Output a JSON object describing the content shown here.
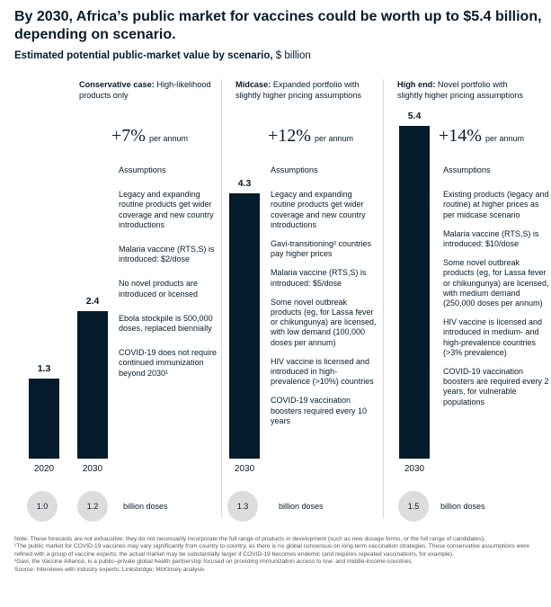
{
  "title": "By 2030, Africa’s public market for vaccines could be worth up to $5.4 billion, depending on scenario.",
  "subtitle": {
    "bold": "Estimated potential public-market value by scenario,",
    "unit": " $ billion"
  },
  "chart_data": {
    "type": "bar",
    "ylim": [
      0,
      5.4
    ],
    "bars": [
      {
        "year": "2020",
        "value": 1.3,
        "label": "1.3",
        "doses": "1.0"
      },
      {
        "year": "2030",
        "value": 2.4,
        "label": "2.4",
        "doses": "1.2"
      },
      {
        "year": "2030",
        "value": 4.3,
        "label": "4.3",
        "doses": "1.3"
      },
      {
        "year": "2030",
        "value": 5.4,
        "label": "5.4",
        "doses": "1.5"
      }
    ],
    "doses_label": "billion doses"
  },
  "scenarios": [
    {
      "name": "Conservative case:",
      "desc": " High-likelihood products only",
      "growth": "+7%",
      "growth_suffix": "per annum",
      "assumptions_label": "Assumptions",
      "items": [
        "Legacy and expanding routine products get wider coverage and new country introductions",
        "Malaria vaccine (RTS,S) is introduced: $2/dose",
        "No novel products are introduced or licensed",
        "Ebola stockpile is 500,000 doses, replaced biennially",
        "COVID-19 does not require continued immunization beyond 2030¹"
      ]
    },
    {
      "name": "Midcase:",
      "desc": " Expanded portfolio with slightly higher pricing assumptions",
      "growth": "+12%",
      "growth_suffix": "per annum",
      "assumptions_label": "Assumptions",
      "items": [
        "Legacy and expanding routine products get wider coverage and new country introductions",
        "Gavi-transitioning² countries pay higher prices",
        "Malaria vaccine (RTS,S) is introduced: $5/dose",
        "Some novel outbreak products (eg, for Lassa fever or chikungunya) are licensed, with low demand (100,000 doses per annum)",
        "HIV vaccine is licensed and introduced in high-prevalence (>10%) countries",
        "COVID-19 vaccination boosters required every 10 years"
      ]
    },
    {
      "name": "High end:",
      "desc": " Novel portfolio with slightly higher pricing assumptions",
      "growth": "+14%",
      "growth_suffix": "per annum",
      "assumptions_label": "Assumptions",
      "items": [
        "Existing products (legacy and routine) at higher prices as per midcase scenario",
        "Malaria vaccine (RTS,S) is introduced: $10/dose",
        "Some novel outbreak products (eg, for Lassa fever or chikungunya) are licensed, with medium demand (250,000 doses per annum)",
        "HIV vaccine is licensed and introduced in medium- and high-prevalence countries (>3% prevalence)",
        "COVID-19 vaccination boosters are required every 2 years, for vulnerable populations"
      ]
    }
  ],
  "notes": [
    "Note: These forecasts are not exhaustive; they do not necessarily incorporate the full range of products in development (such as new dosage forms, or the full range of candidates).",
    "¹The public market for COVID-19 vaccines may vary significantly from country to country, as there is no global consensus on long-term vaccination strategies. These conservative assumptions were refined with a group of vaccine experts; the actual market may be substantially larger if COVID-19 becomes endemic (and requires repeated vaccinations, for example).",
    "²Gavi, the Vaccine Alliance, is a public–private global health partnership focused on providing immunization access to low- and middle-income countries.",
    "Source: Interviews with industry experts; Linksbridge; McKinsey analysis"
  ]
}
